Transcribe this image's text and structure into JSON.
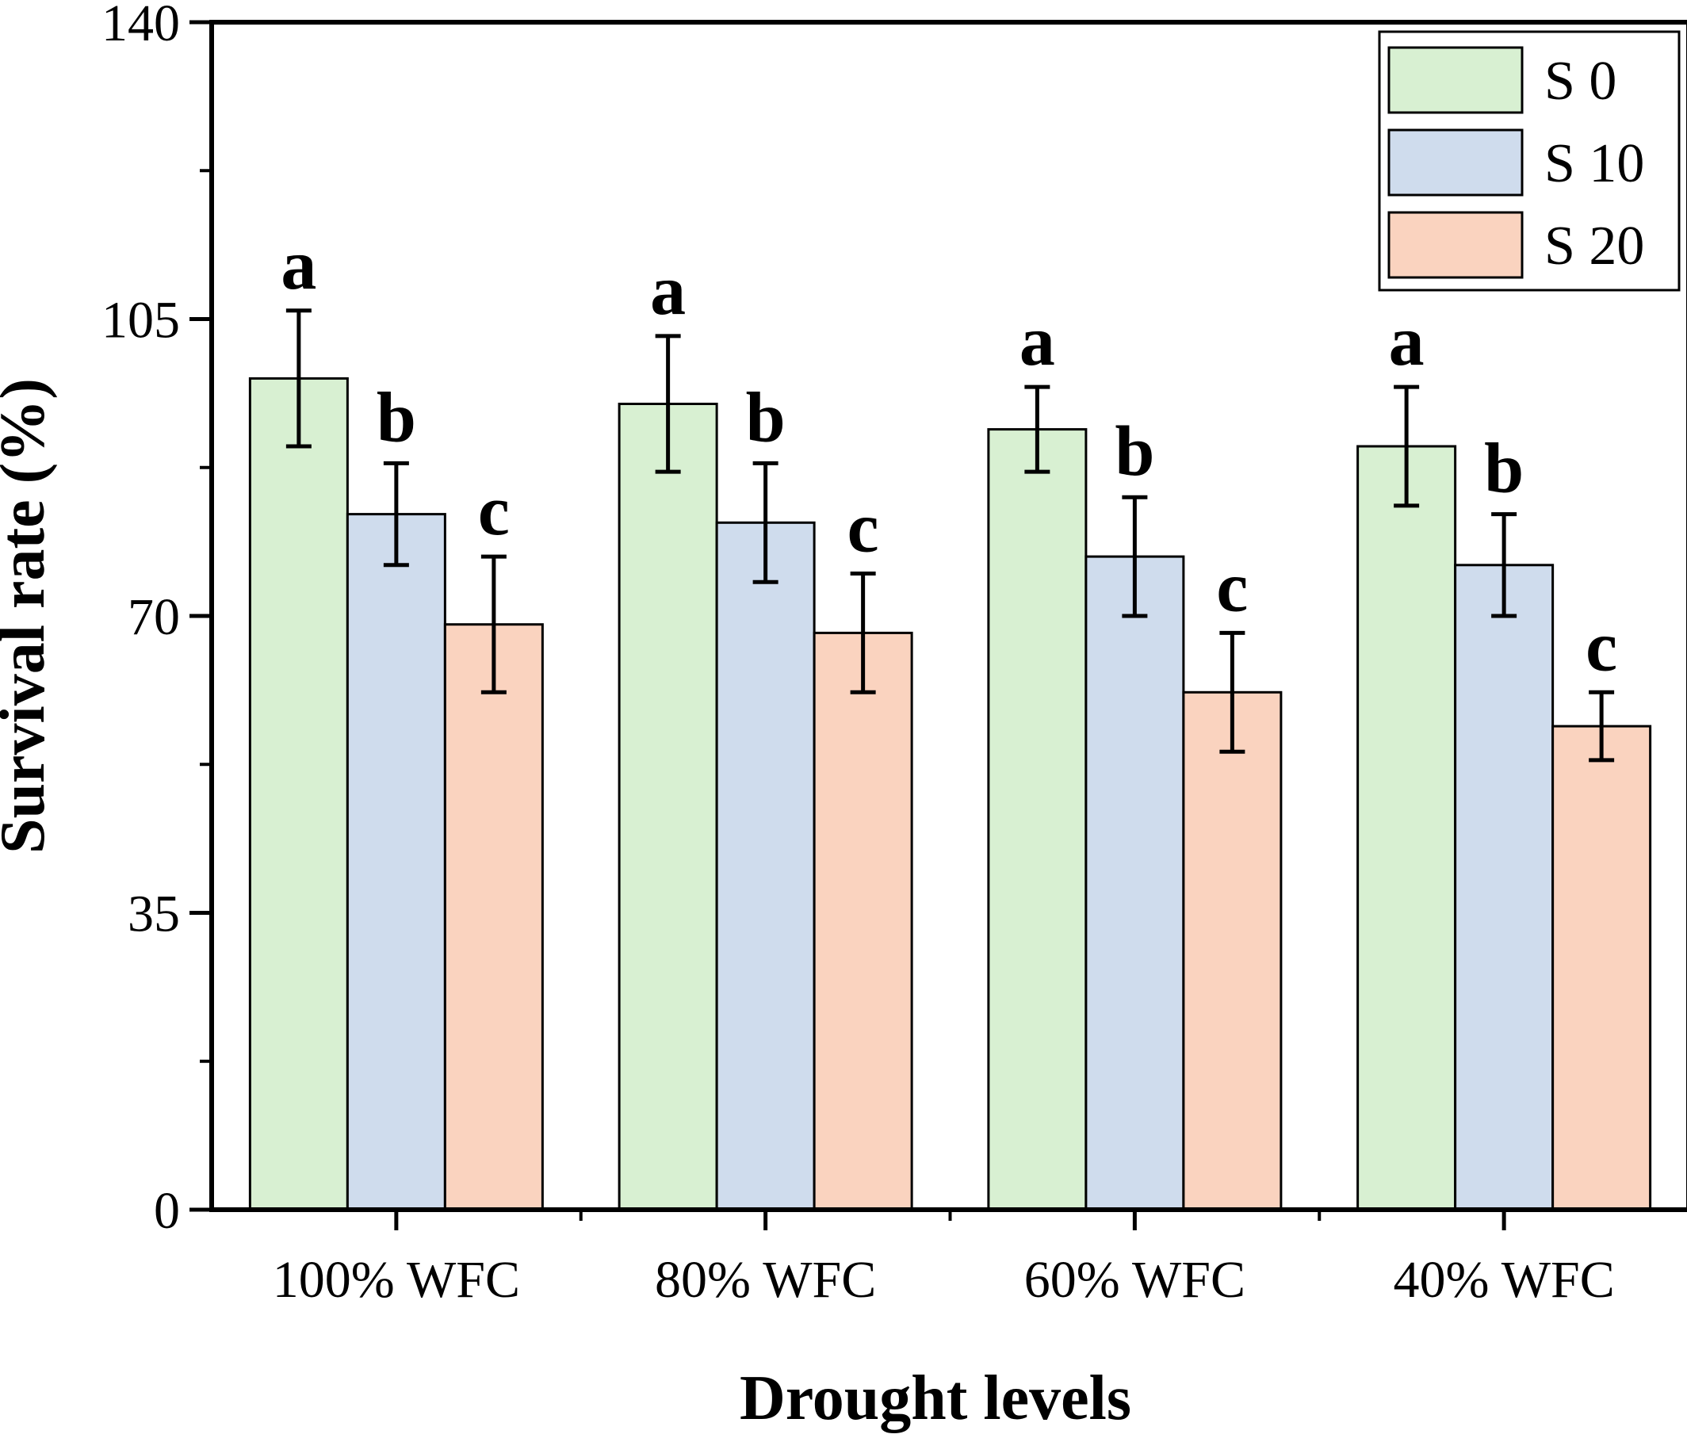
{
  "chart_data": {
    "type": "bar",
    "xlabel": "Drought levels",
    "ylabel": "Survival rate (%)",
    "ylim": [
      0,
      140
    ],
    "yticks": [
      0,
      35,
      70,
      105,
      140
    ],
    "categories": [
      "100% WFC",
      "80% WFC",
      "60% WFC",
      "40% WFC"
    ],
    "series": [
      {
        "name": "S 0",
        "color": "#d8f0d2",
        "values": [
          98,
          95,
          92,
          90
        ],
        "errors": [
          8,
          8,
          5,
          7
        ],
        "letters": [
          "a",
          "a",
          "a",
          "a"
        ]
      },
      {
        "name": "S 10",
        "color": "#cfdced",
        "values": [
          82,
          81,
          77,
          76
        ],
        "errors": [
          6,
          7,
          7,
          6
        ],
        "letters": [
          "b",
          "b",
          "b",
          "b"
        ]
      },
      {
        "name": "S 20",
        "color": "#fad3bf",
        "values": [
          69,
          68,
          61,
          57
        ],
        "errors": [
          8,
          7,
          7,
          4
        ],
        "letters": [
          "c",
          "c",
          "c",
          "c"
        ]
      }
    ],
    "legend": {
      "position": "top-right"
    },
    "grid": false
  }
}
